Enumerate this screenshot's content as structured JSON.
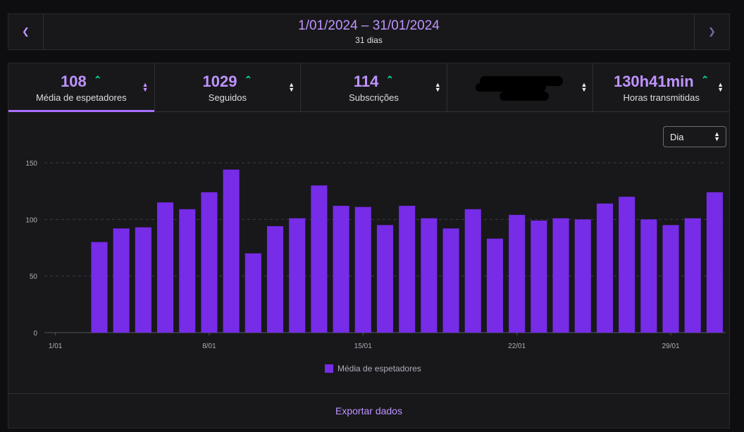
{
  "date_bar": {
    "prev_icon": "chevron-left-icon",
    "next_icon": "chevron-right-icon",
    "range": "1/01/2024 – 31/01/2024",
    "days": "31 dias"
  },
  "stats": [
    {
      "value": "108",
      "label": "Média de espetadores",
      "trend": "up",
      "active": true
    },
    {
      "value": "1029",
      "label": "Seguidos",
      "trend": "up",
      "active": false
    },
    {
      "value": "114",
      "label": "Subscrições",
      "trend": "up",
      "active": false
    },
    {
      "value": "",
      "label": "",
      "redacted": true,
      "active": false
    },
    {
      "value": "130h41min",
      "label": "Horas transmitidas",
      "trend": "up",
      "active": false
    }
  ],
  "interval_select": {
    "value": "Dia"
  },
  "footer": {
    "export_label": "Exportar dados"
  },
  "colors": {
    "accent": "#bf94ff",
    "bar": "#772ce8",
    "up": "#00f593"
  },
  "chart_data": {
    "type": "bar",
    "x": [
      "1/01",
      "2/01",
      "3/01",
      "4/01",
      "5/01",
      "6/01",
      "7/01",
      "8/01",
      "9/01",
      "10/01",
      "11/01",
      "12/01",
      "13/01",
      "14/01",
      "15/01",
      "16/01",
      "17/01",
      "18/01",
      "19/01",
      "20/01",
      "21/01",
      "22/01",
      "23/01",
      "24/01",
      "25/01",
      "26/01",
      "27/01",
      "28/01",
      "29/01",
      "30/01",
      "31/01"
    ],
    "values": [
      null,
      null,
      80,
      92,
      93,
      115,
      109,
      124,
      144,
      70,
      94,
      101,
      130,
      112,
      111,
      95,
      112,
      101,
      92,
      109,
      83,
      104,
      99,
      101,
      100,
      114,
      120,
      100,
      95,
      101,
      124
    ],
    "xticks": [
      "1/01",
      "8/01",
      "15/01",
      "22/01",
      "29/01"
    ],
    "yticks": [
      0,
      50,
      100,
      150
    ],
    "ylim": [
      0,
      150
    ],
    "legend": "Média de espetadores",
    "legend_position": "bottom-center",
    "grid": true
  }
}
